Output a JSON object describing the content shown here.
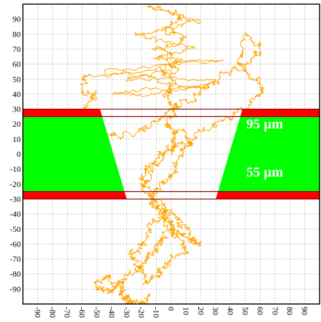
{
  "chart_data": {
    "type": "line",
    "title": "",
    "xlabel": "",
    "ylabel": "",
    "xlim": [
      -100,
      100
    ],
    "ylim": [
      -100,
      100
    ],
    "grid": true,
    "x_ticks": [
      -90,
      -80,
      -70,
      -60,
      -50,
      -40,
      -30,
      -20,
      -10,
      0,
      10,
      20,
      30,
      40,
      50,
      60,
      70,
      80,
      90
    ],
    "y_ticks": [
      90,
      80,
      70,
      60,
      50,
      40,
      30,
      20,
      10,
      0,
      -10,
      -20,
      -30,
      -40,
      -50,
      -60,
      -70,
      -80,
      -90
    ],
    "x_tick_labels": [
      "-90",
      "-80",
      "-70",
      "-60",
      "-50",
      "-40",
      "-30",
      "-20",
      "-10",
      "0",
      "10",
      "20",
      "30",
      "40",
      "50",
      "60",
      "70",
      "80",
      "90"
    ],
    "y_tick_labels": [
      "90",
      "80",
      "70",
      "60",
      "50",
      "40",
      "30",
      "20",
      "10",
      "0",
      "-10",
      "-20",
      "-30",
      "-40",
      "-50",
      "-60",
      "-70",
      "-80",
      "-90"
    ],
    "colors": {
      "trajectory": "#ffa500",
      "membrane": "#00ff00",
      "boundary": "#ff0000",
      "grid": "#b0b0b0",
      "line": "#8b0000"
    },
    "membrane_polygons": [
      {
        "name": "left",
        "points": [
          [
            -100,
            30
          ],
          [
            -48,
            30
          ],
          [
            -30,
            -30
          ],
          [
            -100,
            -30
          ]
        ]
      },
      {
        "name": "right",
        "points": [
          [
            100,
            30
          ],
          [
            48,
            30
          ],
          [
            30,
            -30
          ],
          [
            100,
            -30
          ]
        ]
      }
    ],
    "boundary_bands": [
      {
        "y_top": 30,
        "y_bottom": 25
      },
      {
        "y_top": -25,
        "y_bottom": -30
      }
    ],
    "horizontal_lines": [
      30,
      25,
      -25,
      -30
    ],
    "annotations": [
      {
        "text": "95 µm",
        "x": 63,
        "y": 17
      },
      {
        "text": "55 µm",
        "x": 63,
        "y": -15
      }
    ],
    "series": [
      {
        "x": [
          0,
          2,
          -3,
          4,
          -5,
          3,
          -8,
          6,
          -12,
          10,
          -4,
          8,
          -15,
          20,
          -25,
          15,
          -10,
          5,
          -30,
          25,
          -40,
          30,
          -45,
          35,
          -55,
          -60,
          -50,
          -58,
          -62,
          -48,
          -35,
          -20,
          -5,
          10,
          25,
          40,
          55,
          60,
          52,
          45,
          58,
          62,
          48,
          30,
          15,
          0,
          -10,
          -20,
          -15,
          -5,
          5,
          12,
          18,
          10,
          2,
          -6,
          -14,
          -8,
          0,
          8,
          14,
          6,
          -2,
          -10,
          -18,
          -12,
          -4,
          4,
          10,
          0,
          -8,
          -16,
          -22,
          -18,
          -10,
          -4,
          2,
          -6,
          -14,
          -20,
          -28,
          -22,
          -30,
          -38,
          -45,
          -50,
          -42,
          -35,
          -30,
          -28,
          -32,
          -20,
          -15
        ],
        "y": [
          0,
          12,
          20,
          30,
          40,
          48,
          56,
          62,
          70,
          78,
          85,
          92,
          98,
          88,
          80,
          72,
          65,
          58,
          50,
          45,
          40,
          48,
          55,
          62,
          52,
          44,
          38,
          30,
          22,
          15,
          10,
          18,
          25,
          35,
          45,
          55,
          62,
          70,
          78,
          60,
          50,
          40,
          30,
          20,
          10,
          5,
          -5,
          -15,
          -25,
          -35,
          -45,
          -52,
          -60,
          -55,
          -48,
          -40,
          -32,
          -22,
          -12,
          -2,
          8,
          15,
          5,
          -8,
          -20,
          -30,
          -42,
          -55,
          -65,
          -72,
          -80,
          -85,
          -78,
          -70,
          -62,
          -55,
          -48,
          -40,
          -50,
          -60,
          -68,
          -75,
          -82,
          -88,
          -92,
          -86,
          -80,
          -90,
          -96,
          -99,
          -95,
          -100,
          -94
        ]
      }
    ]
  }
}
